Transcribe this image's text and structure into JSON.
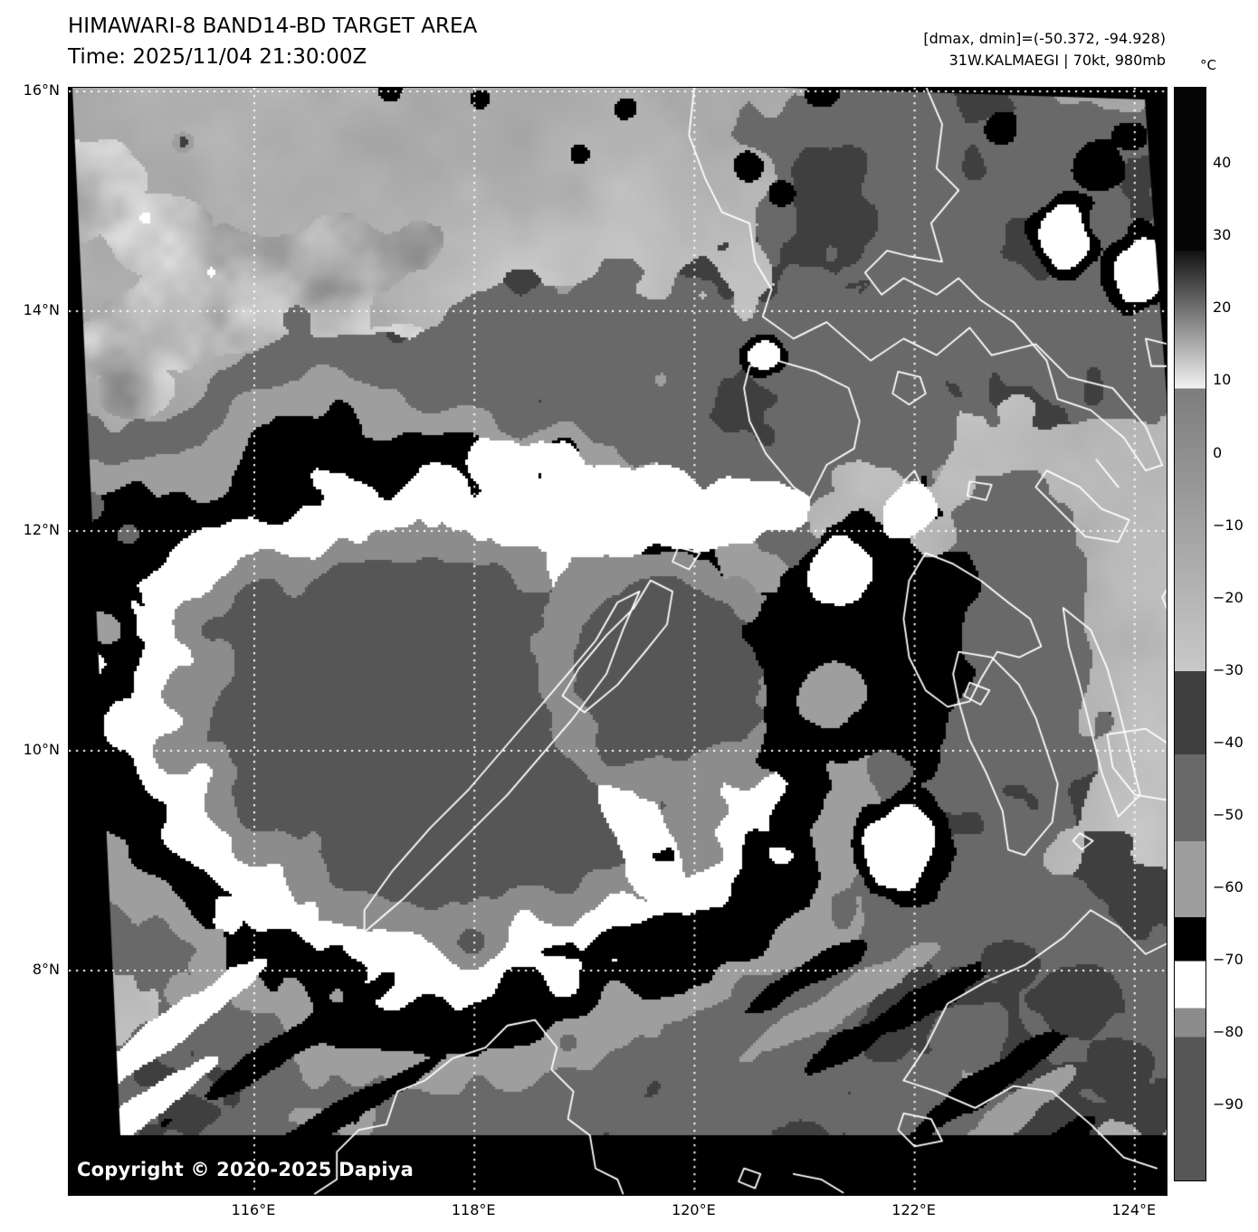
{
  "header": {
    "title_line1": "HIMAWARI-8 BAND14-BD TARGET AREA",
    "title_line2": "Time: 2025/11/04 21:30:00Z",
    "annotation_line1": "[dmax, dmin]=(-50.372, -94.928)",
    "annotation_line2": "31W.KALMAEGI | 70kt, 980mb"
  },
  "colorbar": {
    "unit": "°C",
    "tick_labels": [
      "40",
      "30",
      "20",
      "10",
      "0",
      "−10",
      "−20",
      "−30",
      "−40",
      "−50",
      "−60",
      "−70",
      "−80",
      "−90"
    ],
    "tick_values": [
      40,
      30,
      20,
      10,
      0,
      -10,
      -20,
      -30,
      -40,
      -50,
      -60,
      -70,
      -80,
      -90
    ],
    "segments": [
      {
        "from": 50.5,
        "to": 28,
        "color": "#050505"
      },
      {
        "from": 28,
        "to": 9,
        "color": "#121212",
        "color_end": "#f2f2f2"
      },
      {
        "from": 9,
        "to": -30,
        "color": "#7d7d7d",
        "color_end": "#c9c9c9"
      },
      {
        "from": -30,
        "to": -41.5,
        "color": "#3f3f3f"
      },
      {
        "from": -41.5,
        "to": -53.5,
        "color": "#696969"
      },
      {
        "from": -53.5,
        "to": -64,
        "color": "#9e9e9e"
      },
      {
        "from": -64,
        "to": -70,
        "color": "#000000"
      },
      {
        "from": -70,
        "to": -76.5,
        "color": "#ffffff"
      },
      {
        "from": -76.5,
        "to": -80.5,
        "color": "#8c8c8c"
      },
      {
        "from": -80.5,
        "to": -100.3,
        "color": "#565656"
      }
    ]
  },
  "axes": {
    "lat_ticks": [
      {
        "label": "16°N",
        "deg": 16
      },
      {
        "label": "14°N",
        "deg": 14
      },
      {
        "label": "12°N",
        "deg": 12
      },
      {
        "label": "10°N",
        "deg": 10
      },
      {
        "label": "8°N",
        "deg": 8
      }
    ],
    "lon_ticks": [
      {
        "label": "116°E",
        "deg": 116
      },
      {
        "label": "118°E",
        "deg": 118
      },
      {
        "label": "120°E",
        "deg": 120
      },
      {
        "label": "122°E",
        "deg": 122
      },
      {
        "label": "124°E",
        "deg": 124
      }
    ],
    "grid_color": "#ffffff",
    "coastline_color": "#ffffff"
  },
  "map": {
    "copyright": "Copyright © 2020-2025 Dapiya"
  }
}
